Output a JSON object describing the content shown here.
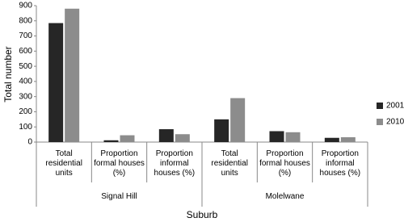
{
  "chart_data": {
    "type": "bar",
    "y_label": "Total number",
    "x_label": "Suburb",
    "groups": [
      "Signal Hill",
      "Molelwane"
    ],
    "categories": [
      "Total residential units",
      "Proportion formal houses (%)",
      "Proportion informal houses (%)",
      "Total residential units",
      "Proportion formal houses (%)",
      "Proportion informal houses (%)"
    ],
    "series": [
      {
        "name": "2001",
        "color": "#262626",
        "values": [
          785,
          12,
          85,
          150,
          72,
          28
        ]
      },
      {
        "name": "2010",
        "color": "#8c8c8c",
        "values": [
          880,
          45,
          52,
          290,
          65,
          32
        ]
      }
    ],
    "ylim": [
      0,
      900
    ],
    "yticks": [
      0,
      100,
      200,
      300,
      400,
      500,
      600,
      700,
      800,
      900
    ],
    "legend": "right"
  }
}
